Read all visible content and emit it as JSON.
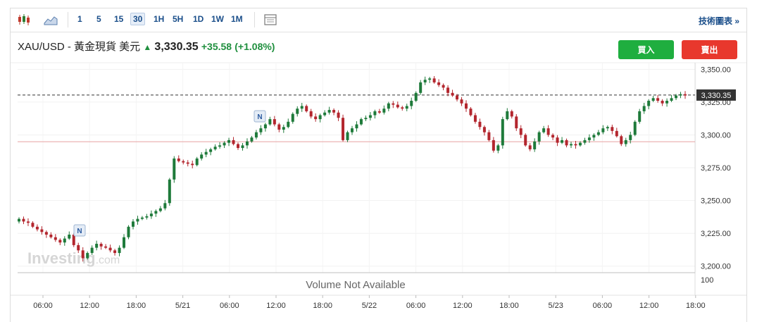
{
  "toolbar": {
    "timeframes": [
      "1",
      "5",
      "15",
      "30",
      "1H",
      "5H",
      "1D",
      "1W",
      "1M"
    ],
    "active_timeframe": "30",
    "tech_chart_link": "技術圖表 »"
  },
  "header": {
    "instrument": "XAU/USD - 黃金現貨 美元",
    "last_price": "3,330.35",
    "change": "+35.58",
    "change_pct": "(+1.08%)"
  },
  "buttons": {
    "buy": "買入",
    "sell": "賣出"
  },
  "watermark": "Investing",
  "watermark_suffix": ".com",
  "volume_text": "Volume Not Available",
  "news_marker": "N",
  "colors": {
    "up": "#1e7a3a",
    "down": "#b3262e",
    "buy": "#1fae3f",
    "sell": "#e8382d",
    "accent": "#1a4e8a"
  },
  "chart_data": {
    "type": "candlestick",
    "instrument": "XAU/USD",
    "interval": "30",
    "y_ticks": [
      "3,350.00",
      "3,325.00",
      "3,300.00",
      "3,275.00",
      "3,250.00",
      "3,225.00",
      "3,200.00"
    ],
    "ylim": [
      3195,
      3355
    ],
    "volume_tick": "100",
    "x_ticks": [
      "06:00",
      "12:00",
      "18:00",
      "5/21",
      "06:00",
      "12:00",
      "18:00",
      "5/22",
      "06:00",
      "12:00",
      "18:00",
      "5/23",
      "06:00",
      "12:00",
      "18:00"
    ],
    "last_price_label": "3,330.35",
    "last_price": 3330.35,
    "previous_close": 3294.77,
    "closes": [
      3236,
      3234,
      3233,
      3230,
      3228,
      3226,
      3224,
      3222,
      3220,
      3218,
      3221,
      3224,
      3216,
      3212,
      3206,
      3210,
      3214,
      3217,
      3215,
      3214,
      3212,
      3210,
      3214,
      3222,
      3230,
      3234,
      3236,
      3237,
      3238,
      3240,
      3242,
      3244,
      3248,
      3266,
      3282,
      3280,
      3279,
      3278,
      3277,
      3282,
      3285,
      3287,
      3289,
      3291,
      3292,
      3294,
      3296,
      3293,
      3290,
      3292,
      3295,
      3298,
      3302,
      3305,
      3308,
      3312,
      3308,
      3304,
      3306,
      3310,
      3316,
      3320,
      3322,
      3318,
      3314,
      3312,
      3315,
      3317,
      3319,
      3317,
      3313,
      3296,
      3302,
      3305,
      3308,
      3312,
      3313,
      3315,
      3318,
      3317,
      3320,
      3324,
      3323,
      3321,
      3320,
      3322,
      3326,
      3332,
      3340,
      3342,
      3343,
      3340,
      3338,
      3336,
      3332,
      3330,
      3327,
      3324,
      3320,
      3315,
      3310,
      3306,
      3302,
      3296,
      3288,
      3292,
      3312,
      3318,
      3314,
      3305,
      3300,
      3292,
      3289,
      3295,
      3302,
      3305,
      3300,
      3298,
      3294,
      3296,
      3292,
      3293,
      3292,
      3294,
      3296,
      3298,
      3300,
      3302,
      3305,
      3306,
      3303,
      3299,
      3293,
      3296,
      3300,
      3310,
      3318,
      3322,
      3326,
      3328,
      3326,
      3324,
      3326,
      3328,
      3330,
      3331,
      3330
    ]
  }
}
